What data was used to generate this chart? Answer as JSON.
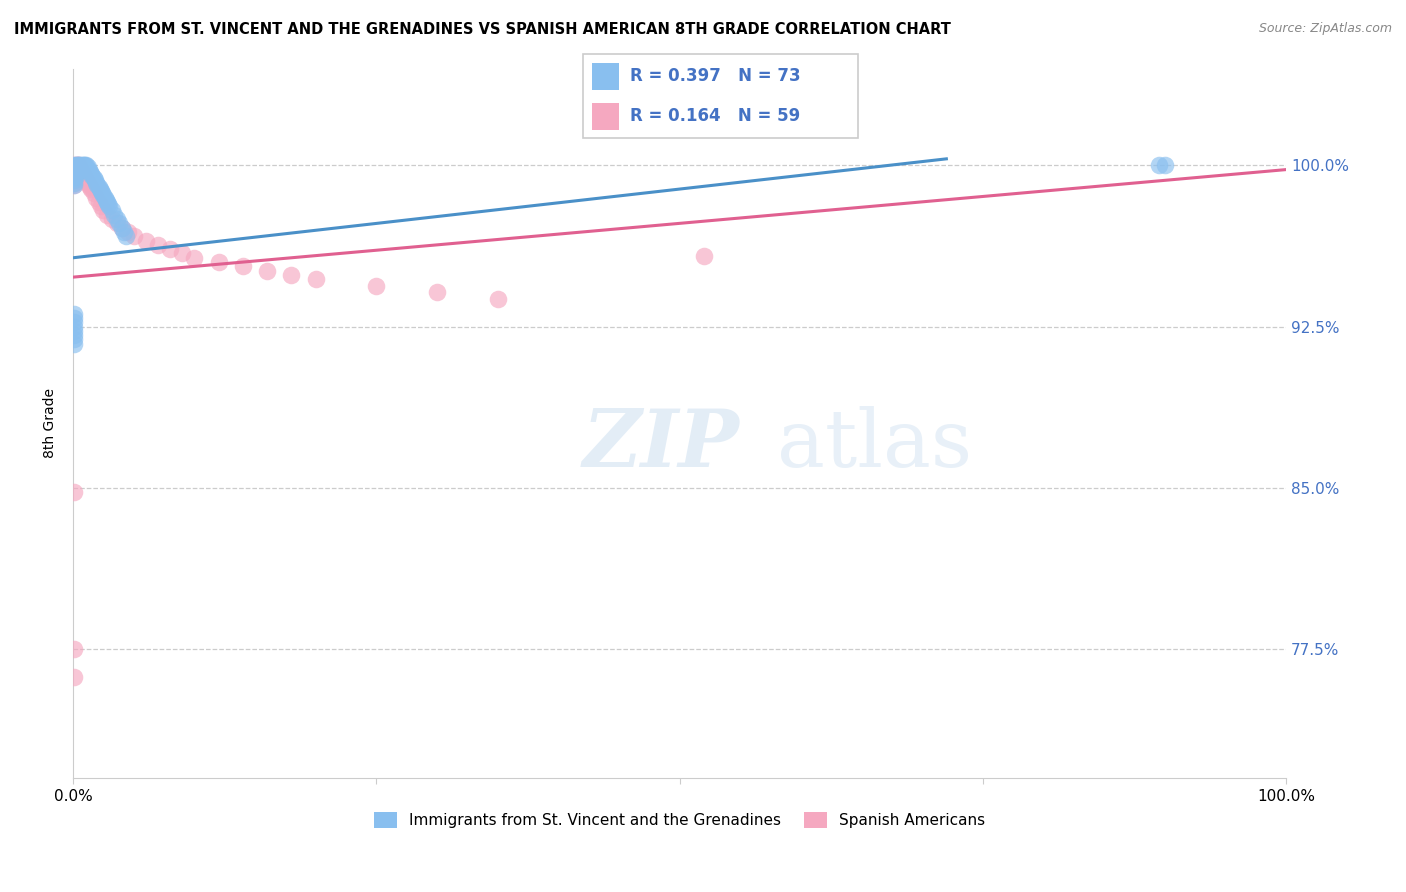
{
  "title": "IMMIGRANTS FROM ST. VINCENT AND THE GRENADINES VS SPANISH AMERICAN 8TH GRADE CORRELATION CHART",
  "source": "Source: ZipAtlas.com",
  "ylabel": "8th Grade",
  "ytick_labels": [
    "77.5%",
    "85.0%",
    "92.5%",
    "100.0%"
  ],
  "ytick_values": [
    0.775,
    0.85,
    0.925,
    1.0
  ],
  "xlim": [
    0.0,
    1.0
  ],
  "ylim": [
    0.715,
    1.045
  ],
  "legend_label1": "Immigrants from St. Vincent and the Grenadines",
  "legend_label2": "Spanish Americans",
  "R1": 0.397,
  "N1": 73,
  "R2": 0.164,
  "N2": 59,
  "color_blue": "#89BFEF",
  "color_pink": "#F5A8C0",
  "color_blue_line": "#4A90C8",
  "color_pink_line": "#E06090",
  "color_blue_text": "#4472C4",
  "blue_trend_x": [
    0.0,
    0.72
  ],
  "blue_trend_y": [
    0.957,
    1.003
  ],
  "pink_trend_x": [
    0.0,
    1.0
  ],
  "pink_trend_y": [
    0.948,
    0.998
  ],
  "blue_x": [
    0.001,
    0.001,
    0.001,
    0.001,
    0.001,
    0.001,
    0.001,
    0.001,
    0.001,
    0.001,
    0.002,
    0.002,
    0.002,
    0.002,
    0.002,
    0.002,
    0.003,
    0.003,
    0.003,
    0.003,
    0.004,
    0.004,
    0.004,
    0.005,
    0.005,
    0.005,
    0.006,
    0.006,
    0.007,
    0.007,
    0.008,
    0.008,
    0.009,
    0.009,
    0.01,
    0.01,
    0.011,
    0.012,
    0.013,
    0.014,
    0.015,
    0.016,
    0.017,
    0.018,
    0.019,
    0.02,
    0.021,
    0.022,
    0.023,
    0.024,
    0.025,
    0.026,
    0.027,
    0.028,
    0.029,
    0.03,
    0.032,
    0.034,
    0.036,
    0.038,
    0.04,
    0.042,
    0.044,
    0.001,
    0.001,
    0.001,
    0.001,
    0.001,
    0.001,
    0.001,
    0.001,
    0.895,
    0.9
  ],
  "blue_y": [
    1.0,
    0.999,
    0.998,
    0.997,
    0.996,
    0.995,
    0.994,
    0.993,
    0.992,
    0.991,
    1.0,
    0.999,
    0.998,
    0.997,
    0.996,
    0.995,
    1.0,
    0.999,
    0.998,
    0.997,
    1.0,
    0.999,
    0.998,
    1.0,
    0.999,
    0.998,
    1.0,
    0.999,
    1.0,
    0.999,
    1.0,
    0.999,
    1.0,
    0.999,
    1.0,
    0.999,
    1.0,
    0.999,
    0.998,
    0.997,
    0.996,
    0.995,
    0.994,
    0.993,
    0.992,
    0.991,
    0.99,
    0.989,
    0.988,
    0.987,
    0.986,
    0.985,
    0.984,
    0.983,
    0.982,
    0.981,
    0.979,
    0.977,
    0.975,
    0.973,
    0.971,
    0.969,
    0.967,
    0.931,
    0.929,
    0.927,
    0.925,
    0.923,
    0.921,
    0.919,
    0.917,
    1.0,
    1.0
  ],
  "pink_x": [
    0.001,
    0.001,
    0.001,
    0.001,
    0.001,
    0.001,
    0.001,
    0.001,
    0.001,
    0.001,
    0.002,
    0.002,
    0.002,
    0.002,
    0.003,
    0.003,
    0.003,
    0.004,
    0.004,
    0.005,
    0.005,
    0.006,
    0.007,
    0.008,
    0.009,
    0.01,
    0.011,
    0.012,
    0.013,
    0.014,
    0.015,
    0.017,
    0.019,
    0.021,
    0.023,
    0.025,
    0.028,
    0.032,
    0.036,
    0.04,
    0.045,
    0.05,
    0.06,
    0.07,
    0.08,
    0.09,
    0.1,
    0.12,
    0.14,
    0.16,
    0.18,
    0.2,
    0.25,
    0.3,
    0.35,
    0.52,
    0.001,
    0.001,
    0.001
  ],
  "pink_y": [
    1.0,
    0.999,
    0.998,
    0.997,
    0.996,
    0.995,
    0.994,
    0.993,
    0.992,
    0.991,
    1.0,
    0.999,
    0.998,
    0.997,
    1.0,
    0.999,
    0.998,
    1.0,
    0.999,
    1.0,
    0.999,
    0.998,
    0.997,
    0.996,
    0.995,
    0.994,
    0.993,
    0.992,
    0.991,
    0.99,
    0.989,
    0.987,
    0.985,
    0.983,
    0.981,
    0.979,
    0.977,
    0.975,
    0.973,
    0.971,
    0.969,
    0.967,
    0.965,
    0.963,
    0.961,
    0.959,
    0.957,
    0.955,
    0.953,
    0.951,
    0.949,
    0.947,
    0.944,
    0.941,
    0.938,
    0.958,
    0.848,
    0.775,
    0.762
  ]
}
